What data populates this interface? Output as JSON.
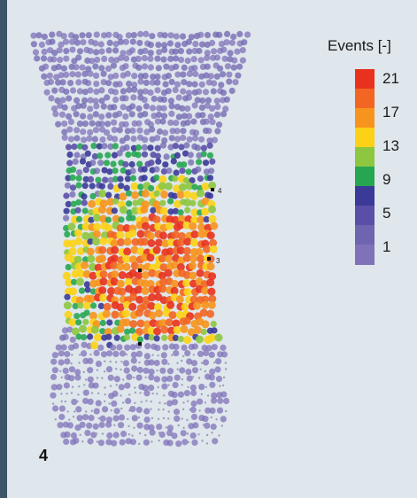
{
  "panel_label": "4",
  "chart_data": {
    "type": "scatter",
    "title": "",
    "colorbar": {
      "title": "Events [-]",
      "ticks": [
        21,
        17,
        13,
        9,
        5,
        1
      ],
      "range": [
        1,
        21
      ],
      "colors": [
        "#e8321e",
        "#f26522",
        "#f7941d",
        "#fcd116",
        "#f5ee30",
        "#8dc63f",
        "#27a652",
        "#2d3e98",
        "#3b3a98",
        "#5a4fa8",
        "#7f72b8"
      ]
    },
    "annotations": [
      "4",
      "3"
    ],
    "description_levels": {
      "top_rim_events": 3,
      "mid_hotspot_events": 21,
      "lower_events": 1
    }
  }
}
